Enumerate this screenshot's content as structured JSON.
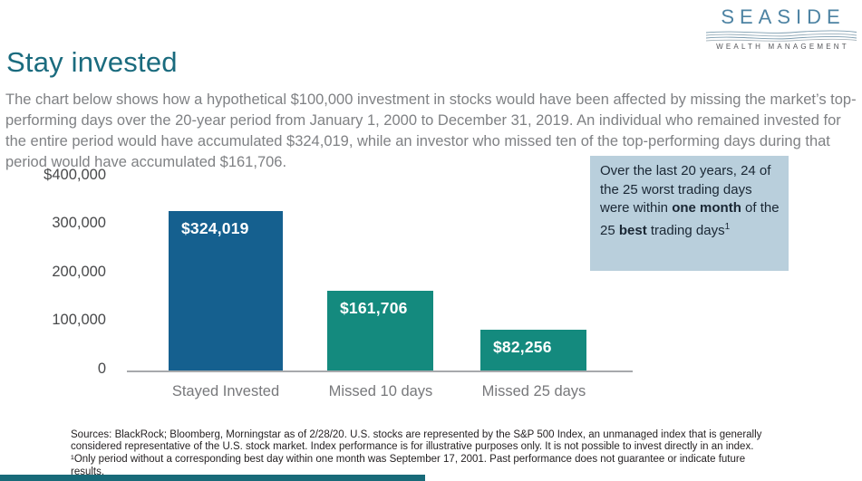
{
  "header": {
    "title": "Stay invested",
    "logo": {
      "name": "SEASIDE",
      "tagline": "WEALTH MANAGEMENT",
      "waves_icon": "wave-lines-icon"
    }
  },
  "intro": "The chart below shows how a hypothetical $100,000 investment in stocks would have been affected by missing the market’s top-performing days over the 20-year period from January 1, 2000 to December 31, 2019. An individual  who remained invested for the entire period would have accumulated $324,019, while an investor who missed ten of  the top-performing days during that period would have accumulated $161,706.",
  "chart_data": {
    "type": "bar",
    "title": "",
    "xlabel": "",
    "ylabel": "",
    "categories": [
      "Stayed Invested",
      "Missed 10 days",
      "Missed 25 days"
    ],
    "values": [
      324019,
      161706,
      82256
    ],
    "value_labels": [
      "$324,019",
      "$161,706",
      "$82,256"
    ],
    "bar_colors": [
      "#15608f",
      "#148a7e",
      "#148a7e"
    ],
    "y_ticks": [
      "$400,000",
      "300,000",
      "200,000",
      "100,000",
      "0"
    ],
    "ylim": [
      0,
      400000
    ],
    "grid": false,
    "legend": false
  },
  "callout": {
    "background": "#b9cfdc",
    "segments": [
      {
        "text": "Over the last 20 years, 24 of the 25 worst trading days were within ",
        "bold": false
      },
      {
        "text": "one month",
        "bold": true
      },
      {
        "text": " of the 25 ",
        "bold": false
      },
      {
        "text": "best",
        "bold": true
      },
      {
        "text": " trading days",
        "bold": false
      },
      {
        "text": "1",
        "bold": false,
        "sup": true
      }
    ]
  },
  "footnote": "Sources: BlackRock; Bloomberg, Morningstar as of 2/28/20. U.S. stocks are represented by the S&P 500 Index, an unmanaged index that is generally considered representative of the U.S. stock market. Index performance is  for illustrative purposes only. It is  not possible to invest directly in  an index. ¹Only period without a corresponding best day within one month was September 17, 2001. Past  performance does not guarantee or indicate future results.",
  "colors": {
    "title_teal": "#1a6b7e",
    "logo_blue": "#4d83a3",
    "body_text_gray": "#7f8184",
    "axis_text_gray": "#48494b",
    "bar_blue": "#15608f",
    "bar_teal": "#148a7e",
    "callout_bg": "#b9cfdc",
    "bottom_bar_teal": "#186a79"
  }
}
